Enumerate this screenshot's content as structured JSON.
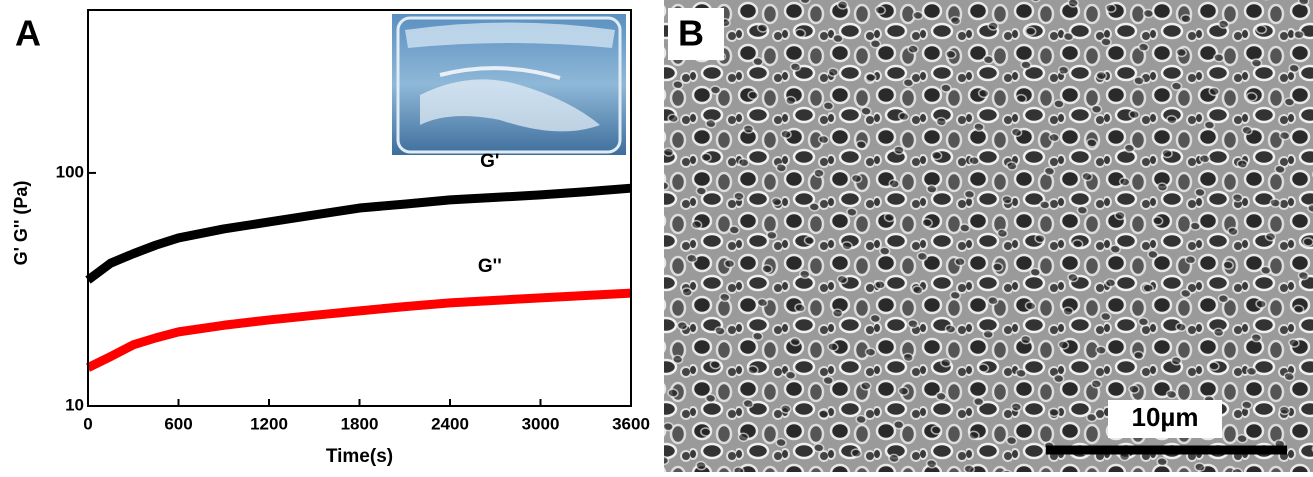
{
  "chart_data": {
    "type": "line",
    "log_y": true,
    "x_label": "Time(s)",
    "y_label": "G' G'' (Pa)",
    "x": [
      0,
      150,
      300,
      450,
      600,
      900,
      1200,
      1500,
      1800,
      2100,
      2400,
      2700,
      3000,
      3300,
      3600
    ],
    "series": [
      {
        "name": "G'",
        "color": "#000000",
        "values": [
          34.7,
          41,
          45,
          49,
          52.6,
          57.5,
          61.6,
          66,
          70.7,
          73.5,
          76.6,
          78.5,
          80.5,
          83,
          86
        ]
      },
      {
        "name": "G''",
        "color": "#ff0000",
        "values": [
          14.6,
          16.3,
          18.3,
          19.6,
          20.8,
          22.2,
          23.4,
          24.5,
          25.6,
          26.7,
          27.7,
          28.4,
          29.1,
          29.8,
          30.5
        ]
      }
    ],
    "xlim": [
      0,
      3600
    ],
    "xticks": [
      0,
      600,
      1200,
      1800,
      2400,
      3000,
      3600
    ],
    "ylim": [
      10,
      500
    ],
    "yticks": [
      10,
      100
    ]
  },
  "figure": {
    "panels": [
      "A",
      "B"
    ],
    "scale_bar_label": "10µm"
  }
}
